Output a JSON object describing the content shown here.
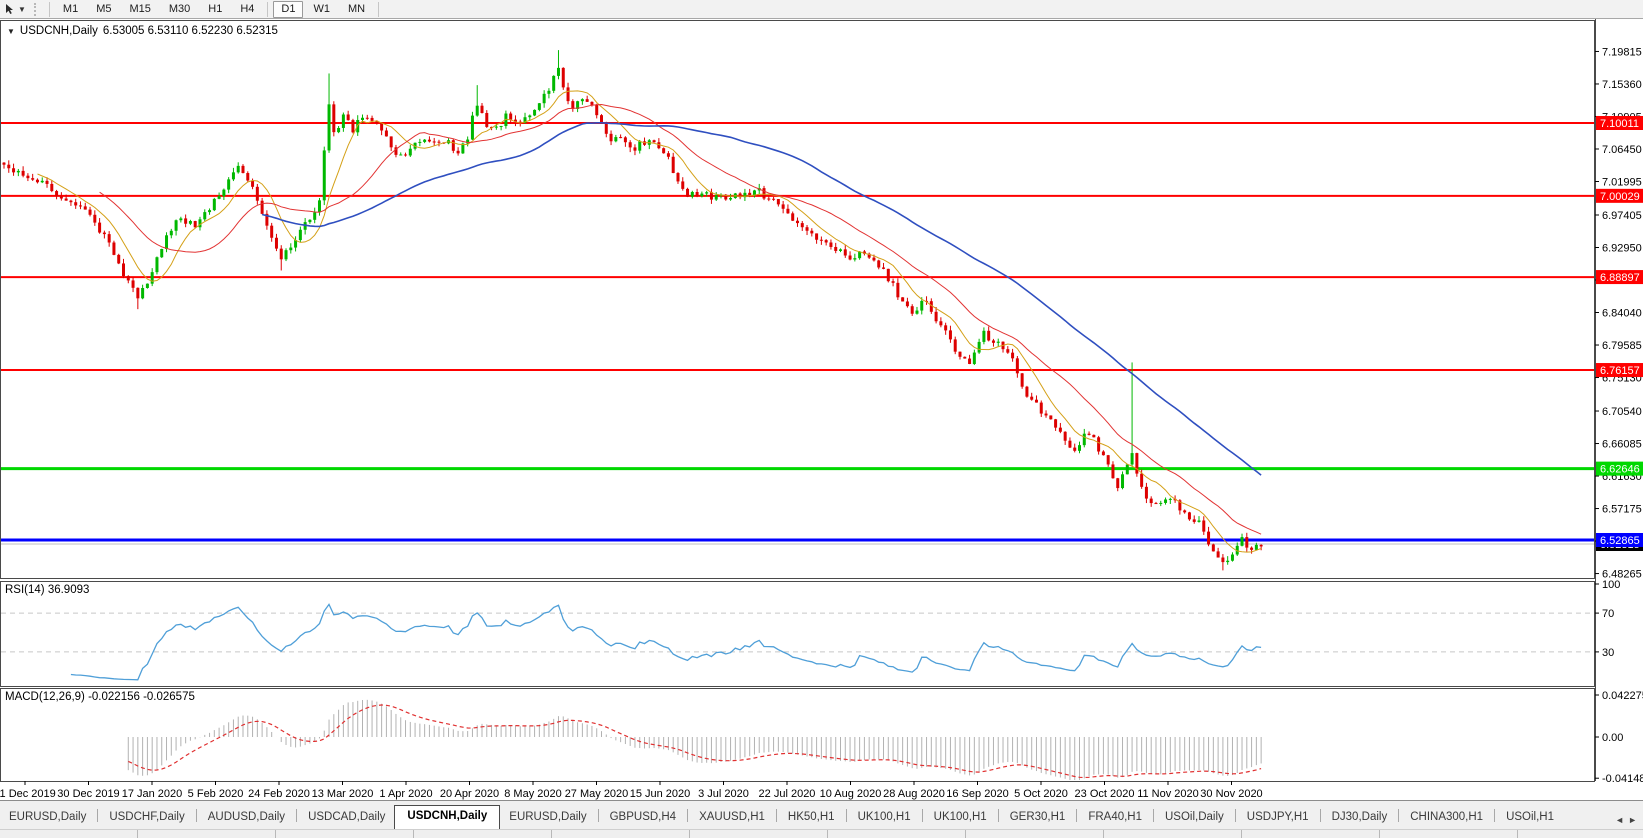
{
  "toolbar": {
    "cursor_tool": "cursor-crosshair-tool",
    "timeframes": [
      {
        "label": "M1"
      },
      {
        "label": "M5"
      },
      {
        "label": "M15"
      },
      {
        "label": "M30"
      },
      {
        "label": "H1"
      },
      {
        "label": "H4"
      },
      {
        "label": "D1"
      },
      {
        "label": "W1"
      },
      {
        "label": "MN"
      }
    ],
    "active_timeframe": "D1"
  },
  "chart": {
    "title_symbol": "USDCNH,Daily",
    "title_ohlc": "6.53005 6.53110 6.52230 6.52315",
    "rsi_label": "RSI(14) 36.9093",
    "macd_label": "MACD(12,26,9) -0.022156 -0.026575"
  },
  "chart_data": {
    "type": "candlestick",
    "symbol": "USDCNH",
    "timeframe": "Daily",
    "ohlc_display": {
      "open": "6.53005",
      "high": "6.53110",
      "low": "6.52230",
      "close": "6.52315"
    },
    "n_candles": 264,
    "price_path_anchors": [
      [
        0,
        7.045
      ],
      [
        4,
        7.03
      ],
      [
        8,
        7.02
      ],
      [
        12,
        6.995
      ],
      [
        17,
        6.985
      ],
      [
        20,
        6.955
      ],
      [
        23,
        6.92
      ],
      [
        26,
        6.88
      ],
      [
        28,
        6.86
      ],
      [
        31,
        6.895
      ],
      [
        33,
        6.93
      ],
      [
        36,
        6.97
      ],
      [
        40,
        6.962
      ],
      [
        42,
        6.978
      ],
      [
        45,
        6.998
      ],
      [
        49,
        7.042
      ],
      [
        52,
        7.01
      ],
      [
        55,
        6.958
      ],
      [
        58,
        6.916
      ],
      [
        60,
        6.93
      ],
      [
        62,
        6.952
      ],
      [
        66,
        6.992
      ],
      [
        67,
        7.06
      ],
      [
        68,
        7.125
      ],
      [
        69,
        7.085
      ],
      [
        71,
        7.108
      ],
      [
        73,
        7.092
      ],
      [
        75,
        7.112
      ],
      [
        78,
        7.102
      ],
      [
        80,
        7.085
      ],
      [
        82,
        7.058
      ],
      [
        84,
        7.052
      ],
      [
        87,
        7.078
      ],
      [
        90,
        7.07
      ],
      [
        92,
        7.076
      ],
      [
        95,
        7.062
      ],
      [
        97,
        7.082
      ],
      [
        99,
        7.128
      ],
      [
        101,
        7.098
      ],
      [
        103,
        7.092
      ],
      [
        105,
        7.108
      ],
      [
        108,
        7.098
      ],
      [
        110,
        7.112
      ],
      [
        112,
        7.132
      ],
      [
        114,
        7.148
      ],
      [
        116,
        7.172
      ],
      [
        117,
        7.152
      ],
      [
        119,
        7.118
      ],
      [
        121,
        7.132
      ],
      [
        123,
        7.128
      ],
      [
        125,
        7.098
      ],
      [
        127,
        7.072
      ],
      [
        129,
        7.082
      ],
      [
        131,
        7.062
      ],
      [
        133,
        7.072
      ],
      [
        136,
        7.072
      ],
      [
        139,
        7.052
      ],
      [
        141,
        7.018
      ],
      [
        143,
        7.002
      ],
      [
        146,
        7.004
      ],
      [
        149,
        6.996
      ],
      [
        152,
        6.999
      ],
      [
        155,
        7.004
      ],
      [
        158,
        7.006
      ],
      [
        161,
        6.993
      ],
      [
        164,
        6.974
      ],
      [
        167,
        6.96
      ],
      [
        169,
        6.952
      ],
      [
        171,
        6.938
      ],
      [
        173,
        6.932
      ],
      [
        175,
        6.925
      ],
      [
        177,
        6.916
      ],
      [
        179,
        6.922
      ],
      [
        181,
        6.912
      ],
      [
        184,
        6.896
      ],
      [
        186,
        6.876
      ],
      [
        188,
        6.855
      ],
      [
        190,
        6.842
      ],
      [
        193,
        6.856
      ],
      [
        196,
        6.822
      ],
      [
        199,
        6.79
      ],
      [
        202,
        6.772
      ],
      [
        205,
        6.812
      ],
      [
        208,
        6.798
      ],
      [
        211,
        6.782
      ],
      [
        213,
        6.742
      ],
      [
        215,
        6.718
      ],
      [
        218,
        6.7
      ],
      [
        221,
        6.672
      ],
      [
        224,
        6.654
      ],
      [
        227,
        6.678
      ],
      [
        230,
        6.642
      ],
      [
        233,
        6.6
      ],
      [
        236,
        6.652
      ],
      [
        238,
        6.598
      ],
      [
        241,
        6.574
      ],
      [
        244,
        6.588
      ],
      [
        247,
        6.562
      ],
      [
        250,
        6.552
      ],
      [
        253,
        6.508
      ],
      [
        255,
        6.497
      ],
      [
        257,
        6.513
      ],
      [
        259,
        6.53
      ],
      [
        261,
        6.512
      ],
      [
        263,
        6.523
      ]
    ],
    "wick_overrides": {
      "28": {
        "low": 6.845
      },
      "58": {
        "low": 6.898
      },
      "68": {
        "high": 7.168
      },
      "99": {
        "high": 7.152
      },
      "116": {
        "high": 7.2
      },
      "236": {
        "high": 6.772
      },
      "255": {
        "low": 6.487
      }
    },
    "noise": 0.012,
    "seed": 9,
    "candle_up_color": "#00b800",
    "candle_down_color": "#dd0000",
    "moving_averages": [
      {
        "name": "ma-fast",
        "period": 8,
        "color": "#d4a017",
        "width": 1
      },
      {
        "name": "ma-mid",
        "period": 21,
        "color": "#e23333",
        "width": 1
      },
      {
        "name": "ma-slow",
        "period": 55,
        "color": "#2f4fc0",
        "width": 1.6
      }
    ],
    "horizontal_lines": [
      {
        "price": 7.10011,
        "label": "7.10011",
        "color": "#ff0000",
        "width": 2
      },
      {
        "price": 7.00029,
        "label": "7.00029",
        "color": "#ff0000",
        "width": 2
      },
      {
        "price": 6.88897,
        "label": "6.88897",
        "color": "#ff0000",
        "width": 2
      },
      {
        "price": 6.76157,
        "label": "6.76157",
        "color": "#ff0000",
        "width": 2
      },
      {
        "price": 6.62646,
        "label": "6.62646",
        "color": "#00d800",
        "width": 3
      },
      {
        "price": 6.52865,
        "label": "6.52865",
        "color": "#0000ff",
        "width": 3
      }
    ],
    "current_price": {
      "value": 6.52315,
      "label": "6.52315",
      "line_color": "#bfbfbf",
      "label_bg": "#000000"
    },
    "y_axis_ticks": [
      "7.19815",
      "7.15360",
      "7.10905",
      "7.06450",
      "7.01995",
      "6.97405",
      "6.92950",
      "6.88495",
      "6.84040",
      "6.79585",
      "6.75130",
      "6.70540",
      "6.66085",
      "6.61630",
      "6.57175",
      "6.52720",
      "6.48265"
    ],
    "x_axis_dates": [
      "11 Dec 2019",
      "30 Dec 2019",
      "17 Jan 2020",
      "5 Feb 2020",
      "24 Feb 2020",
      "13 Mar 2020",
      "1 Apr 2020",
      "20 Apr 2020",
      "8 May 2020",
      "27 May 2020",
      "15 Jun 2020",
      "3 Jul 2020",
      "22 Jul 2020",
      "10 Aug 2020",
      "28 Aug 2020",
      "16 Sep 2020",
      "5 Oct 2020",
      "23 Oct 2020",
      "11 Nov 2020",
      "30 Nov 2020"
    ],
    "rsi": {
      "label": "RSI(14) 36.9093",
      "period": 14,
      "value": 36.9093,
      "levels": [
        70,
        30
      ],
      "scale_labels": [
        "100",
        "70",
        "30"
      ],
      "line_color": "#4f9fd8"
    },
    "macd": {
      "label": "MACD(12,26,9) -0.022156 -0.026575",
      "fast": 12,
      "slow": 26,
      "signal": 9,
      "main_value": -0.022156,
      "signal_value": -0.026575,
      "scale_labels": [
        {
          "v": 0.042275,
          "t": "0.042275"
        },
        {
          "v": 0,
          "t": "0.00"
        },
        {
          "v": -0.04148,
          "t": "-0.04148"
        }
      ],
      "bar_color": "#b2b2b2",
      "signal_color": "#e03030"
    }
  },
  "tabs": {
    "items": [
      "EURUSD,Daily",
      "USDCHF,Daily",
      "AUDUSD,Daily",
      "USDCAD,Daily",
      "USDCNH,Daily",
      "EURUSD,Daily",
      "GBPUSD,H4",
      "XAUUSD,H1",
      "HK50,H1",
      "UK100,H1",
      "UK100,H1",
      "GER30,H1",
      "FRA40,H1",
      "USOil,Daily",
      "USDJPY,H1",
      "DJ30,Daily",
      "CHINA300,H1",
      "USOil,H1"
    ],
    "active_index": 4,
    "scroll_left": "◄",
    "scroll_right": "►"
  }
}
